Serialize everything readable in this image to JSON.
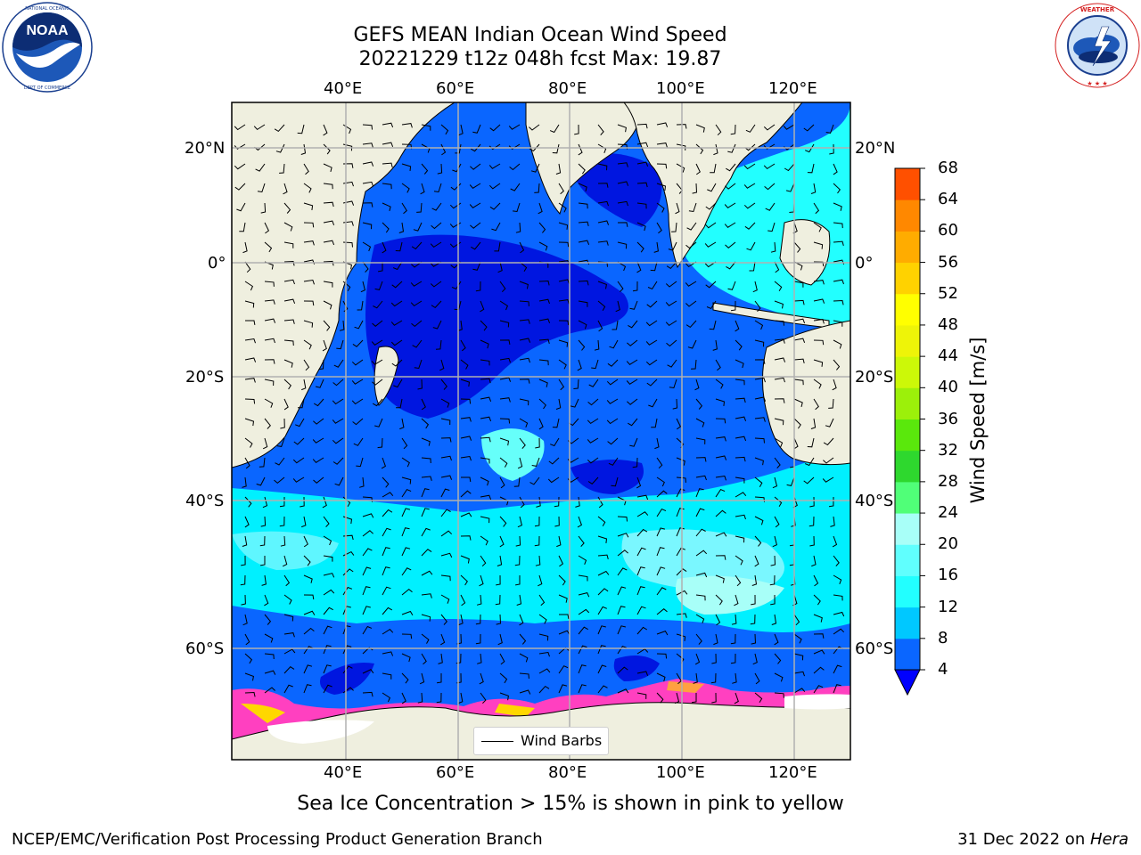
{
  "title": {
    "line1": "GEFS MEAN Indian Ocean Wind Speed",
    "line2": "20221229 t12z 048h fcst   Max: 19.87"
  },
  "map": {
    "lon_ticks_top": [
      "40°E",
      "60°E",
      "80°E",
      "100°E",
      "120°E"
    ],
    "lon_ticks_bottom": [
      "40°E",
      "60°E",
      "80°E",
      "100°E",
      "120°E"
    ],
    "lat_ticks_left": [
      "20°N",
      "0°",
      "20°S",
      "40°S",
      "60°S"
    ],
    "lat_ticks_right": [
      "20°N",
      "0°",
      "20°S",
      "40°S",
      "60°S"
    ],
    "lon_range_deg": [
      20,
      130
    ],
    "lat_range_deg": [
      -75,
      28
    ],
    "gridlines": true,
    "legend": {
      "label": "Wind Barbs"
    }
  },
  "colorbar": {
    "label": "Wind Speed [m/s]",
    "ticks": [
      "4",
      "8",
      "12",
      "16",
      "20",
      "24",
      "28",
      "32",
      "36",
      "40",
      "44",
      "48",
      "52",
      "56",
      "60",
      "64",
      "68"
    ],
    "colors": [
      "#0a66ff",
      "#00c8ff",
      "#22ffff",
      "#60fffe",
      "#a8fff8",
      "#50ff78",
      "#2ed82e",
      "#5ae80c",
      "#9cf00a",
      "#ccf808",
      "#eef408",
      "#ffff00",
      "#ffd200",
      "#ffac00",
      "#ff8800",
      "#ff5000",
      "#ff2400",
      "#ff0000"
    ]
  },
  "caption": "Sea Ice Concentration > 15% is shown in pink to yellow",
  "footer": {
    "left": "NCEP/EMC/Verification Post Processing Product Generation Branch",
    "right_prefix": "31 Dec 2022 on ",
    "right_machine": "Hera"
  },
  "logos": {
    "left": {
      "icon": "noaa-logo",
      "text": "NOAA",
      "ring_text": "NATIONAL OCEANIC AND ATMOSPHERIC ADMINISTRATION · U.S. DEPARTMENT OF COMMERCE"
    },
    "right": {
      "icon": "nws-logo",
      "ring_text": "NATIONAL WEATHER SERVICE"
    }
  }
}
